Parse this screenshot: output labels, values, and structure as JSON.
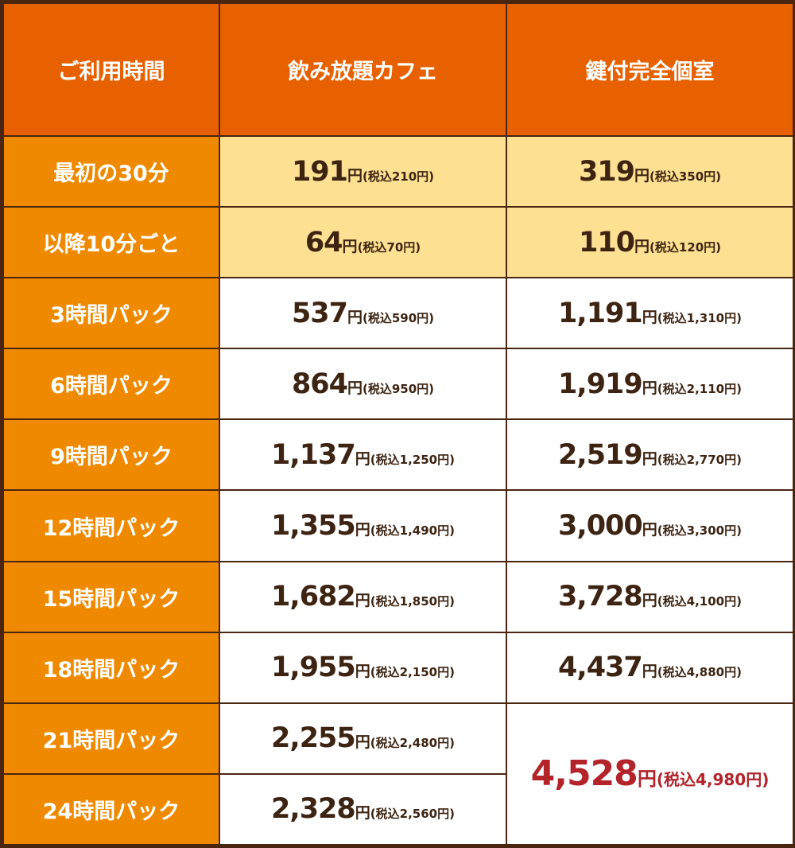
{
  "headers": {
    "time": "ご利用時間",
    "cafe": "飲み放題カフェ",
    "room": "鍵付完全個室"
  },
  "rows": [
    {
      "label": "最初の30分",
      "cafe": {
        "price": "191",
        "yen": "円",
        "tax": "(税込210円)"
      },
      "room": {
        "price": "319",
        "yen": "円",
        "tax": "(税込350円)"
      }
    },
    {
      "label": "以降10分ごと",
      "cafe": {
        "price": "64",
        "yen": "円",
        "tax": "(税込70円)"
      },
      "room": {
        "price": "110",
        "yen": "円",
        "tax": "(税込120円)"
      }
    },
    {
      "label": "3時間パック",
      "cafe": {
        "price": "537",
        "yen": "円",
        "tax": "(税込590円)"
      },
      "room": {
        "price": "1,191",
        "yen": "円",
        "tax": "(税込1,310円)"
      }
    },
    {
      "label": "6時間パック",
      "cafe": {
        "price": "864",
        "yen": "円",
        "tax": "(税込950円)"
      },
      "room": {
        "price": "1,919",
        "yen": "円",
        "tax": "(税込2,110円)"
      }
    },
    {
      "label": "9時間パック",
      "cafe": {
        "price": "1,137",
        "yen": "円",
        "tax": "(税込1,250円)"
      },
      "room": {
        "price": "2,519",
        "yen": "円",
        "tax": "(税込2,770円)"
      }
    },
    {
      "label": "12時間パック",
      "cafe": {
        "price": "1,355",
        "yen": "円",
        "tax": "(税込1,490円)"
      },
      "room": {
        "price": "3,000",
        "yen": "円",
        "tax": "(税込3,300円)"
      }
    },
    {
      "label": "15時間パック",
      "cafe": {
        "price": "1,682",
        "yen": "円",
        "tax": "(税込1,850円)"
      },
      "room": {
        "price": "3,728",
        "yen": "円",
        "tax": "(税込4,100円)"
      }
    },
    {
      "label": "18時間パック",
      "cafe": {
        "price": "1,955",
        "yen": "円",
        "tax": "(税込2,150円)"
      },
      "room": {
        "price": "4,437",
        "yen": "円",
        "tax": "(税込4,880円)"
      }
    },
    {
      "label": "21時間パック",
      "cafe": {
        "price": "2,255",
        "yen": "円",
        "tax": "(税込2,480円)"
      }
    },
    {
      "label": "24時間パック",
      "cafe": {
        "price": "2,328",
        "yen": "円",
        "tax": "(税込2,560円)"
      }
    }
  ],
  "merged_room": {
    "price": "4,528",
    "yen": "円",
    "tax": "(税込4,980円)",
    "color": "#b3232a"
  },
  "colors": {
    "border": "#4a2510",
    "header_bg": "#e86100",
    "label_bg": "#ef8a00",
    "highlight_row_bg": "#fde092",
    "text": "#3d2412"
  }
}
